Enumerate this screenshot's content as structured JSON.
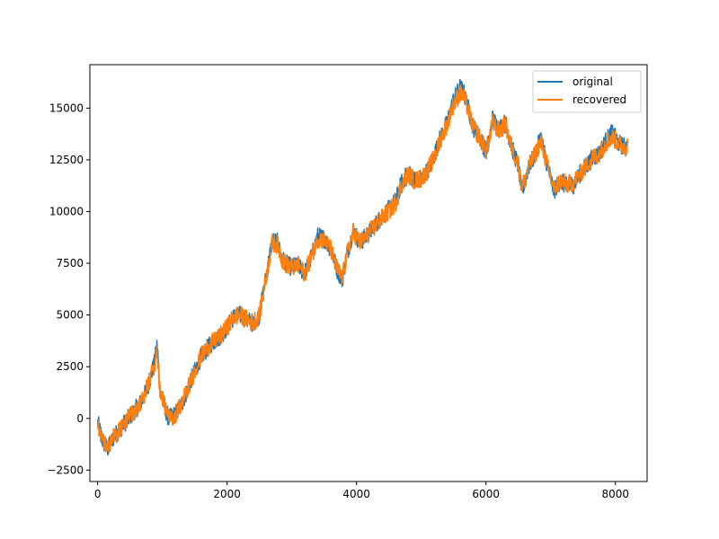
{
  "chart_data": {
    "type": "line",
    "title": "",
    "xlabel": "",
    "ylabel": "",
    "xlim": [
      -120,
      8490
    ],
    "ylim": [
      -3050,
      17100
    ],
    "x_ticks": [
      0,
      2000,
      4000,
      6000,
      8000
    ],
    "x_tick_labels": [
      "0",
      "2000",
      "4000",
      "6000",
      "8000"
    ],
    "y_ticks": [
      -2500,
      0,
      2500,
      5000,
      7500,
      10000,
      12500,
      15000
    ],
    "y_tick_labels": [
      "−2500",
      "0",
      "2500",
      "5000",
      "7500",
      "10000",
      "12500",
      "15000"
    ],
    "grid": false,
    "legend_position": "top-right",
    "series": [
      {
        "name": "original",
        "color": "#1f77b4",
        "x": [
          0,
          80,
          150,
          250,
          400,
          550,
          700,
          800,
          880,
          920,
          960,
          1050,
          1100,
          1200,
          1300,
          1450,
          1600,
          1750,
          1900,
          2000,
          2100,
          2200,
          2300,
          2400,
          2500,
          2600,
          2700,
          2780,
          2850,
          2900,
          3000,
          3100,
          3200,
          3300,
          3400,
          3500,
          3600,
          3700,
          3780,
          3850,
          3950,
          4050,
          4150,
          4250,
          4400,
          4500,
          4600,
          4700,
          4800,
          4900,
          5000,
          5100,
          5200,
          5300,
          5400,
          5500,
          5600,
          5650,
          5700,
          5800,
          5900,
          6000,
          6050,
          6100,
          6200,
          6300,
          6400,
          6500,
          6550,
          6600,
          6650,
          6750,
          6850,
          6950,
          7050,
          7150,
          7250,
          7350,
          7450,
          7550,
          7650,
          7750,
          7850,
          7950,
          8050,
          8150,
          8190
        ],
        "y": [
          -200,
          -1100,
          -1500,
          -900,
          -300,
          300,
          900,
          1800,
          2700,
          3600,
          1500,
          400,
          0,
          200,
          700,
          1900,
          3000,
          3600,
          4000,
          4400,
          4900,
          5000,
          4800,
          4600,
          5000,
          6800,
          8600,
          8500,
          7700,
          7500,
          7300,
          7400,
          7000,
          7800,
          8800,
          8700,
          8200,
          7200,
          6700,
          7900,
          9100,
          8500,
          8800,
          9200,
          9800,
          10100,
          10500,
          11400,
          11900,
          11500,
          11600,
          12000,
          12700,
          13600,
          14300,
          15400,
          16000,
          15800,
          15300,
          14100,
          13600,
          12900,
          13400,
          14500,
          14000,
          14300,
          13100,
          12200,
          11000,
          11400,
          12100,
          12700,
          13600,
          12200,
          11000,
          11500,
          11200,
          11300,
          11800,
          12200,
          12600,
          12800,
          13400,
          13800,
          13300,
          13100,
          13200
        ]
      },
      {
        "name": "recovered",
        "color": "#ff7f0e",
        "x": [
          0,
          80,
          150,
          250,
          400,
          550,
          700,
          800,
          880,
          920,
          960,
          1050,
          1100,
          1200,
          1300,
          1450,
          1600,
          1750,
          1900,
          2000,
          2100,
          2200,
          2300,
          2400,
          2500,
          2600,
          2700,
          2780,
          2850,
          2900,
          3000,
          3100,
          3200,
          3300,
          3400,
          3500,
          3600,
          3700,
          3780,
          3850,
          3950,
          4050,
          4150,
          4250,
          4400,
          4500,
          4600,
          4700,
          4800,
          4900,
          5000,
          5100,
          5200,
          5300,
          5400,
          5500,
          5600,
          5650,
          5700,
          5800,
          5900,
          6000,
          6050,
          6100,
          6200,
          6300,
          6400,
          6500,
          6550,
          6600,
          6650,
          6750,
          6850,
          6950,
          7050,
          7150,
          7250,
          7350,
          7450,
          7550,
          7650,
          7750,
          7850,
          7950,
          8050,
          8150,
          8190
        ],
        "y": [
          -300,
          -1000,
          -1400,
          -900,
          -300,
          300,
          900,
          1800,
          2600,
          3300,
          1500,
          400,
          0,
          200,
          700,
          1900,
          3000,
          3600,
          4000,
          4400,
          4900,
          5000,
          4800,
          4600,
          5000,
          6800,
          8500,
          8400,
          7700,
          7500,
          7300,
          7400,
          7000,
          7800,
          8700,
          8600,
          8200,
          7200,
          6800,
          7900,
          9000,
          8500,
          8800,
          9200,
          9700,
          10000,
          10400,
          11300,
          11800,
          11500,
          11600,
          12000,
          12600,
          13500,
          14200,
          15200,
          15700,
          15600,
          15200,
          14100,
          13600,
          13000,
          13400,
          14300,
          13900,
          14200,
          13100,
          12300,
          11200,
          11500,
          12100,
          12700,
          13400,
          12200,
          11100,
          11500,
          11300,
          11400,
          11800,
          12200,
          12600,
          12800,
          13300,
          13600,
          13300,
          13100,
          13200
        ]
      }
    ]
  }
}
